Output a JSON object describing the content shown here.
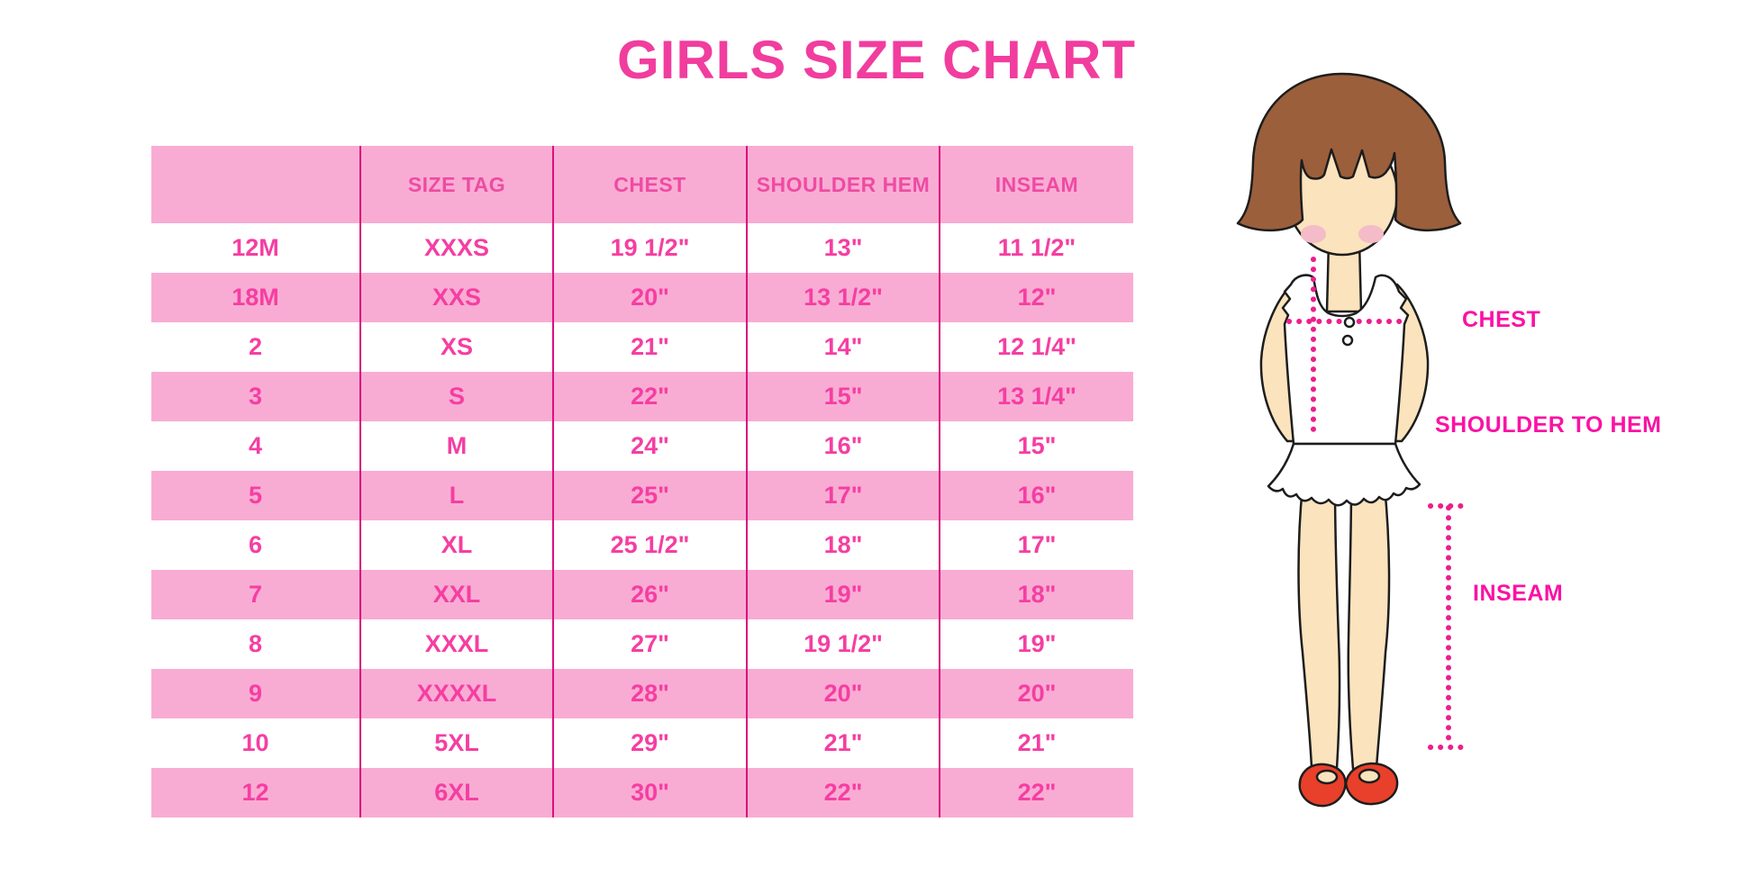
{
  "title": "GIRLS SIZE CHART",
  "chart_data": {
    "type": "table",
    "title": "GIRLS SIZE CHART",
    "columns": [
      "",
      "SIZE TAG",
      "CHEST",
      "SHOULDER HEM",
      "INSEAM"
    ],
    "rows": [
      [
        "12M",
        "XXXS",
        "19 1/2\"",
        "13\"",
        "11 1/2\""
      ],
      [
        "18M",
        "XXS",
        "20\"",
        "13 1/2\"",
        "12\""
      ],
      [
        "2",
        "XS",
        "21\"",
        "14\"",
        "12 1/4\""
      ],
      [
        "3",
        "S",
        "22\"",
        "15\"",
        "13 1/4\""
      ],
      [
        "4",
        "M",
        "24\"",
        "16\"",
        "15\""
      ],
      [
        "5",
        "L",
        "25\"",
        "17\"",
        "16\""
      ],
      [
        "6",
        "XL",
        "25 1/2\"",
        "18\"",
        "17\""
      ],
      [
        "7",
        "XXL",
        "26\"",
        "19\"",
        "18\""
      ],
      [
        "8",
        "XXXL",
        "27\"",
        "19 1/2\"",
        "19\""
      ],
      [
        "9",
        "XXXXL",
        "28\"",
        "20\"",
        "20\""
      ],
      [
        "10",
        "5XL",
        "29\"",
        "21\"",
        "21\""
      ],
      [
        "12",
        "6XL",
        "30\"",
        "22\"",
        "22\""
      ]
    ],
    "layout_hints": {
      "stripe_rows": "alternating white and pink, header pink",
      "grid": "vertical magenta column dividers only"
    }
  },
  "figure": {
    "description": "cartoon girl with brown bob haircut, white sleeveless ruffled top, red shoes, with dotted measurement guide lines",
    "labels": {
      "chest": "CHEST",
      "shoulder_to_hem": "SHOULDER TO HEM",
      "inseam": "INSEAM"
    }
  },
  "colors": {
    "title_pink": "#F13D9E",
    "stripe_pink": "#F9ACD3",
    "divider_magenta": "#DB0F7D",
    "cell_text_pink": "#F53EA2",
    "header_text_pink": "#EE4BA3",
    "label_magenta": "#FA12A4",
    "dotted_line_magenta": "#EC1E8C",
    "hair_brown": "#9B5F3B",
    "skin": "#FBE3BD",
    "blush_pink": "#F4BBC9",
    "shoe_red": "#E8402A"
  }
}
